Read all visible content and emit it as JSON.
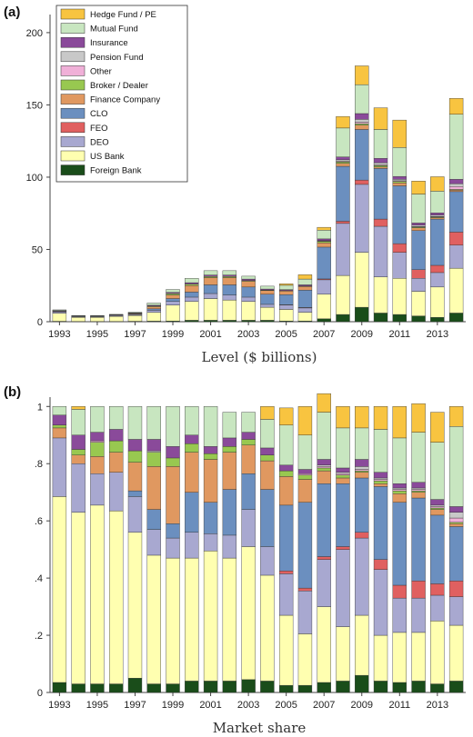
{
  "figure": {
    "panel_a_label": "(a)",
    "panel_b_label": "(b)",
    "caption_a": "Level ($ billions)",
    "caption_b": "Market share"
  },
  "chart_data": [
    {
      "type": "bar",
      "stacked": true,
      "caption": "Level ($ billions)",
      "xlabel": "",
      "ylabel": "",
      "ylim": [
        0,
        210
      ],
      "yticks": [
        0,
        50,
        100,
        150,
        200
      ],
      "xtick_labels": [
        "1993",
        "1995",
        "1997",
        "1999",
        "2001",
        "2003",
        "2005",
        "2007",
        "2009",
        "2011",
        "2013"
      ],
      "categories": [
        "1993",
        "1994",
        "1995",
        "1996",
        "1997",
        "1998",
        "1999",
        "2000",
        "2001",
        "2002",
        "2003",
        "2004",
        "2005",
        "2006",
        "2007",
        "2008",
        "2009",
        "2010",
        "2011",
        "2012",
        "2013",
        "2014"
      ],
      "legend_position": "top-left",
      "series": [
        {
          "name": "Foreign Bank",
          "color": "#1a4d1a",
          "values": [
            0.3,
            0.2,
            0.2,
            0.2,
            0.3,
            0.4,
            0.5,
            1,
            1,
            1,
            1,
            1,
            0.5,
            0.5,
            2,
            5,
            10,
            6,
            5,
            4,
            3,
            6
          ]
        },
        {
          "name": "US Bank",
          "color": "#ffffb0",
          "values": [
            5.5,
            2.8,
            2.8,
            3.5,
            4,
            6,
            11,
            13,
            15,
            14,
            13,
            9,
            8,
            6,
            17,
            27,
            38,
            25,
            25,
            17,
            21,
            31
          ]
        },
        {
          "name": "DEO",
          "color": "#a8a8d0",
          "values": [
            1,
            0.5,
            0.5,
            0.6,
            0.6,
            1.5,
            2.5,
            3,
            3.5,
            3.5,
            3,
            2,
            3,
            3,
            10,
            36,
            47,
            35,
            18,
            9,
            10,
            16
          ]
        },
        {
          "name": "FEO",
          "color": "#e06060",
          "values": [
            0,
            0,
            0,
            0,
            0,
            0,
            0,
            0,
            0,
            0,
            0,
            0,
            0.2,
            0.3,
            0.6,
            1.5,
            3,
            5,
            6,
            6,
            5,
            9
          ]
        },
        {
          "name": "CLO",
          "color": "#6b8fbf",
          "values": [
            0,
            0,
            0,
            0,
            0.2,
            1,
            2,
            3.5,
            6,
            7,
            7,
            7,
            7,
            12,
            22,
            38,
            35,
            35,
            40,
            27,
            32,
            28
          ]
        },
        {
          "name": "Finance Company",
          "color": "#e09860",
          "values": [
            0.3,
            0.2,
            0.2,
            0.2,
            0.5,
            1.5,
            2.5,
            4.5,
            5,
            5,
            4,
            2.5,
            2.5,
            2.5,
            3,
            2,
            3,
            1,
            2,
            2,
            1,
            1
          ]
        },
        {
          "name": "Broker / Dealer",
          "color": "#98c850",
          "values": [
            0.2,
            0.1,
            0.1,
            0.1,
            0.2,
            0.5,
            1,
            1,
            0.8,
            0.8,
            0.5,
            0.4,
            0.4,
            0.4,
            1,
            1,
            1,
            1,
            1,
            0.5,
            0.5,
            0.5
          ]
        },
        {
          "name": "Other",
          "color": "#f0b0d8",
          "values": [
            0,
            0,
            0,
            0,
            0,
            0,
            0,
            0,
            0,
            0,
            0,
            0,
            0,
            0,
            0.2,
            0.5,
            1,
            0.5,
            0.5,
            0.3,
            0.3,
            2
          ]
        },
        {
          "name": "Pension Fund",
          "color": "#c8c8c8",
          "values": [
            0,
            0,
            0,
            0,
            0,
            0,
            0,
            0,
            0,
            0,
            0,
            0,
            0,
            0,
            0.3,
            1,
            2,
            1.5,
            1,
            1,
            1,
            2
          ]
        },
        {
          "name": "Insurance",
          "color": "#8a4a9a",
          "values": [
            0.4,
            0.2,
            0.2,
            0.2,
            0.3,
            0.5,
            0.8,
            1,
            1,
            1,
            1,
            0.7,
            0.6,
            0.8,
            1.2,
            2,
            4,
            3,
            2,
            1.5,
            1.5,
            3
          ]
        },
        {
          "name": "Mutual Fund",
          "color": "#c8e6c0",
          "values": [
            0.5,
            0.3,
            0.3,
            0.3,
            0.5,
            1.5,
            2,
            3,
            3,
            3,
            2,
            2,
            3,
            4,
            6,
            20,
            20,
            20,
            20,
            20,
            15,
            45
          ]
        },
        {
          "name": "Hedge Fund / PE",
          "color": "#f8c440",
          "values": [
            0,
            0,
            0,
            0,
            0,
            0,
            0,
            0,
            0,
            0,
            0,
            0,
            1,
            3,
            2,
            8,
            13,
            15,
            19,
            9,
            10,
            11
          ]
        }
      ]
    },
    {
      "type": "bar",
      "stacked": true,
      "caption": "Market share",
      "xlabel": "",
      "ylabel": "",
      "ylim": [
        0,
        1.02
      ],
      "yticks": [
        0,
        0.2,
        0.4,
        0.6,
        0.8,
        1
      ],
      "ytick_labels": [
        "0",
        ".2",
        ".4",
        ".6",
        ".8",
        "1"
      ],
      "xtick_labels": [
        "1993",
        "1995",
        "1997",
        "1999",
        "2001",
        "2003",
        "2005",
        "2007",
        "2009",
        "2011",
        "2013"
      ],
      "categories": [
        "1993",
        "1994",
        "1995",
        "1996",
        "1997",
        "1998",
        "1999",
        "2000",
        "2001",
        "2002",
        "2003",
        "2004",
        "2005",
        "2006",
        "2007",
        "2008",
        "2009",
        "2010",
        "2011",
        "2012",
        "2013",
        "2014"
      ],
      "series": [
        {
          "name": "Foreign Bank",
          "color": "#1a4d1a",
          "values": [
            0.035,
            0.03,
            0.03,
            0.03,
            0.05,
            0.03,
            0.03,
            0.04,
            0.04,
            0.04,
            0.045,
            0.04,
            0.025,
            0.025,
            0.035,
            0.04,
            0.06,
            0.04,
            0.035,
            0.04,
            0.03,
            0.04
          ]
        },
        {
          "name": "US Bank",
          "color": "#ffffb0",
          "values": [
            0.65,
            0.6,
            0.625,
            0.605,
            0.51,
            0.45,
            0.44,
            0.43,
            0.455,
            0.43,
            0.465,
            0.37,
            0.245,
            0.18,
            0.265,
            0.19,
            0.21,
            0.16,
            0.175,
            0.17,
            0.22,
            0.195
          ]
        },
        {
          "name": "DEO",
          "color": "#a8a8d0",
          "values": [
            0.205,
            0.17,
            0.11,
            0.135,
            0.125,
            0.09,
            0.07,
            0.09,
            0.06,
            0.08,
            0.13,
            0.1,
            0.145,
            0.15,
            0.165,
            0.27,
            0.27,
            0.23,
            0.12,
            0.12,
            0.09,
            0.1
          ]
        },
        {
          "name": "FEO",
          "color": "#e06060",
          "values": [
            0,
            0,
            0,
            0,
            0,
            0,
            0,
            0,
            0,
            0,
            0,
            0,
            0.01,
            0.01,
            0.01,
            0.01,
            0.02,
            0.035,
            0.045,
            0.06,
            0.04,
            0.055
          ]
        },
        {
          "name": "CLO",
          "color": "#6b8fbf",
          "values": [
            0,
            0,
            0,
            0,
            0.02,
            0.07,
            0.05,
            0.14,
            0.11,
            0.16,
            0.125,
            0.2,
            0.23,
            0.3,
            0.255,
            0.22,
            0.19,
            0.255,
            0.29,
            0.29,
            0.24,
            0.19
          ]
        },
        {
          "name": "Finance Company",
          "color": "#e09860",
          "values": [
            0.035,
            0.03,
            0.06,
            0.07,
            0.1,
            0.15,
            0.2,
            0.14,
            0.15,
            0.13,
            0.1,
            0.1,
            0.1,
            0.08,
            0.045,
            0.02,
            0.02,
            0.01,
            0.03,
            0.02,
            0.02,
            0.01
          ]
        },
        {
          "name": "Broker / Dealer",
          "color": "#98c850",
          "values": [
            0.01,
            0.02,
            0.05,
            0.04,
            0.04,
            0.05,
            0.03,
            0.03,
            0.02,
            0.02,
            0.02,
            0.02,
            0.02,
            0.015,
            0.01,
            0.01,
            0.005,
            0.01,
            0.01,
            0.005,
            0.005,
            0.005
          ]
        },
        {
          "name": "Other",
          "color": "#f0b0d8",
          "values": [
            0,
            0,
            0.005,
            0,
            0,
            0,
            0,
            0,
            0,
            0,
            0,
            0,
            0,
            0.005,
            0.005,
            0.005,
            0.005,
            0.005,
            0.005,
            0.005,
            0.005,
            0.015
          ]
        },
        {
          "name": "Pension Fund",
          "color": "#c8c8c8",
          "values": [
            0,
            0,
            0,
            0,
            0,
            0.005,
            0,
            0,
            0,
            0,
            0,
            0,
            0,
            0,
            0.005,
            0.005,
            0.01,
            0.005,
            0.005,
            0.005,
            0.005,
            0.02
          ]
        },
        {
          "name": "Insurance",
          "color": "#8a4a9a",
          "values": [
            0.035,
            0.05,
            0.03,
            0.04,
            0.04,
            0.04,
            0.04,
            0.03,
            0.025,
            0.03,
            0.025,
            0.025,
            0.02,
            0.015,
            0.02,
            0.015,
            0.025,
            0.02,
            0.015,
            0.02,
            0.02,
            0.02
          ]
        },
        {
          "name": "Mutual Fund",
          "color": "#c8e6c0",
          "values": [
            0.03,
            0.09,
            0.09,
            0.08,
            0.115,
            0.115,
            0.14,
            0.1,
            0.14,
            0.09,
            0.07,
            0.1,
            0.14,
            0.12,
            0.165,
            0.14,
            0.11,
            0.15,
            0.16,
            0.175,
            0.2,
            0.28
          ]
        },
        {
          "name": "Hedge Fund / PE",
          "color": "#f8c440",
          "values": [
            0,
            0.01,
            0,
            0,
            0,
            0,
            0,
            0,
            0,
            0,
            0,
            0.045,
            0.06,
            0.1,
            0.065,
            0.075,
            0.075,
            0.08,
            0.11,
            0.1,
            0.105,
            0.07
          ]
        }
      ]
    }
  ]
}
